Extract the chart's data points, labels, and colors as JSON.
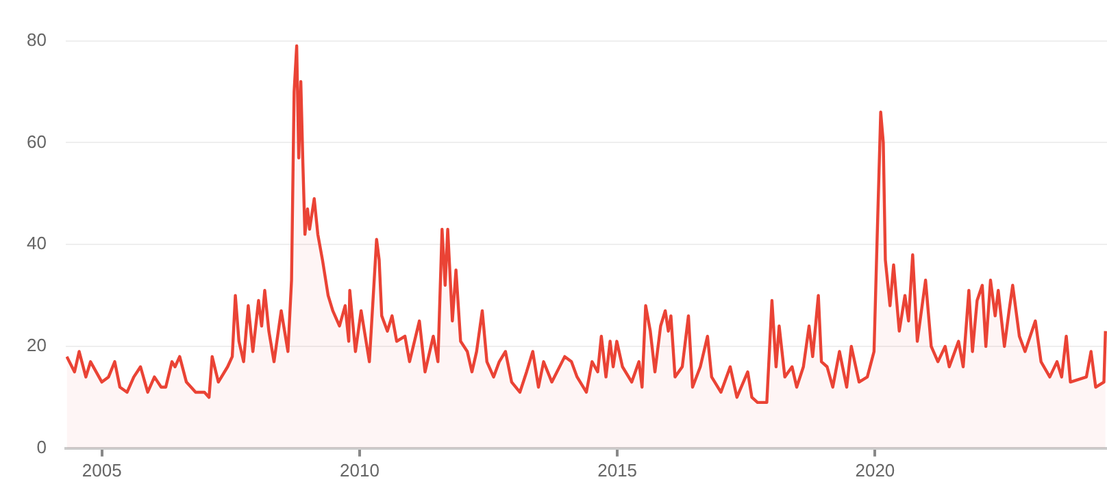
{
  "chart_data": {
    "type": "area",
    "x": [
      2004.32,
      2004.47,
      2004.56,
      2004.69,
      2004.78,
      2005.0,
      2005.13,
      2005.25,
      2005.35,
      2005.49,
      2005.62,
      2005.75,
      2005.89,
      2006.02,
      2006.15,
      2006.24,
      2006.36,
      2006.42,
      2006.51,
      2006.64,
      2006.82,
      2006.99,
      2007.08,
      2007.14,
      2007.26,
      2007.44,
      2007.53,
      2007.59,
      2007.66,
      2007.75,
      2007.84,
      2007.93,
      2008.04,
      2008.1,
      2008.16,
      2008.24,
      2008.34,
      2008.48,
      2008.61,
      2008.68,
      2008.73,
      2008.78,
      2008.82,
      2008.86,
      2008.9,
      2008.94,
      2008.99,
      2009.03,
      2009.12,
      2009.19,
      2009.28,
      2009.39,
      2009.48,
      2009.61,
      2009.72,
      2009.79,
      2009.81,
      2009.92,
      2010.03,
      2010.19,
      2010.33,
      2010.38,
      2010.43,
      2010.54,
      2010.63,
      2010.72,
      2010.88,
      2010.97,
      2011.16,
      2011.27,
      2011.43,
      2011.52,
      2011.6,
      2011.66,
      2011.71,
      2011.8,
      2011.87,
      2011.96,
      2012.09,
      2012.18,
      2012.27,
      2012.38,
      2012.47,
      2012.6,
      2012.71,
      2012.83,
      2012.95,
      2013.11,
      2013.24,
      2013.36,
      2013.47,
      2013.57,
      2013.73,
      2013.98,
      2014.11,
      2014.22,
      2014.4,
      2014.51,
      2014.62,
      2014.69,
      2014.78,
      2014.86,
      2014.92,
      2014.99,
      2015.1,
      2015.28,
      2015.42,
      2015.48,
      2015.55,
      2015.64,
      2015.73,
      2015.84,
      2015.93,
      2015.99,
      2016.04,
      2016.12,
      2016.26,
      2016.38,
      2016.46,
      2016.61,
      2016.75,
      2016.83,
      2017.01,
      2017.19,
      2017.32,
      2017.53,
      2017.61,
      2017.72,
      2017.9,
      2018.0,
      2018.08,
      2018.14,
      2018.25,
      2018.39,
      2018.48,
      2018.61,
      2018.72,
      2018.79,
      2018.9,
      2018.96,
      2019.07,
      2019.18,
      2019.31,
      2019.45,
      2019.54,
      2019.69,
      2019.85,
      2019.98,
      2020.04,
      2020.11,
      2020.16,
      2020.2,
      2020.29,
      2020.36,
      2020.47,
      2020.58,
      2020.65,
      2020.73,
      2020.82,
      2020.98,
      2021.09,
      2021.22,
      2021.36,
      2021.44,
      2021.62,
      2021.71,
      2021.82,
      2021.89,
      2021.98,
      2022.08,
      2022.15,
      2022.24,
      2022.33,
      2022.39,
      2022.51,
      2022.6,
      2022.67,
      2022.8,
      2022.91,
      2023.11,
      2023.22,
      2023.39,
      2023.53,
      2023.62,
      2023.71,
      2023.79,
      2024.1,
      2024.19,
      2024.28,
      2024.44,
      2024.47
    ],
    "series": [
      {
        "color": "#ea4335",
        "values": [
          18,
          15,
          19,
          14,
          17,
          13,
          14,
          17,
          12,
          11,
          14,
          16,
          11,
          14,
          12,
          12,
          17,
          16,
          18,
          13,
          11,
          11,
          10,
          18,
          13,
          16,
          18,
          30,
          21,
          17,
          28,
          19,
          29,
          24,
          31,
          23,
          17,
          27,
          19,
          33,
          70,
          79,
          57,
          72,
          56,
          42,
          47,
          43,
          49,
          42,
          37,
          30,
          27,
          24,
          28,
          21,
          31,
          19,
          27,
          17,
          41,
          37,
          26,
          23,
          26,
          21,
          22,
          17,
          25,
          15,
          22,
          17,
          43,
          32,
          43,
          25,
          35,
          21,
          19,
          15,
          19,
          27,
          17,
          14,
          17,
          19,
          13,
          11,
          15,
          19,
          12,
          17,
          13,
          18,
          17,
          14,
          11,
          17,
          15,
          22,
          14,
          21,
          16,
          21,
          16,
          13,
          17,
          12,
          28,
          23,
          15,
          24,
          27,
          23,
          26,
          14,
          16,
          26,
          12,
          16,
          22,
          14,
          11,
          16,
          10,
          15,
          10,
          9,
          9,
          29,
          16,
          24,
          14,
          16,
          12,
          16,
          24,
          18,
          30,
          17,
          16,
          12,
          19,
          12,
          20,
          13,
          14,
          19,
          41,
          66,
          60,
          37,
          28,
          36,
          23,
          30,
          25,
          38,
          21,
          33,
          20,
          17,
          20,
          16,
          21,
          16,
          31,
          19,
          29,
          32,
          20,
          33,
          26,
          31,
          20,
          27,
          32,
          22,
          19,
          25,
          17,
          14,
          17,
          14,
          22,
          13,
          14,
          19,
          12,
          13,
          23
        ]
      }
    ],
    "xlim": [
      2004.3,
      2024.5
    ],
    "xticks": [
      2005,
      2010,
      2015,
      2020
    ],
    "ylim": [
      0,
      80
    ],
    "yticks": [
      0,
      20,
      40,
      60,
      80
    ],
    "grid": "y",
    "legend": false
  }
}
